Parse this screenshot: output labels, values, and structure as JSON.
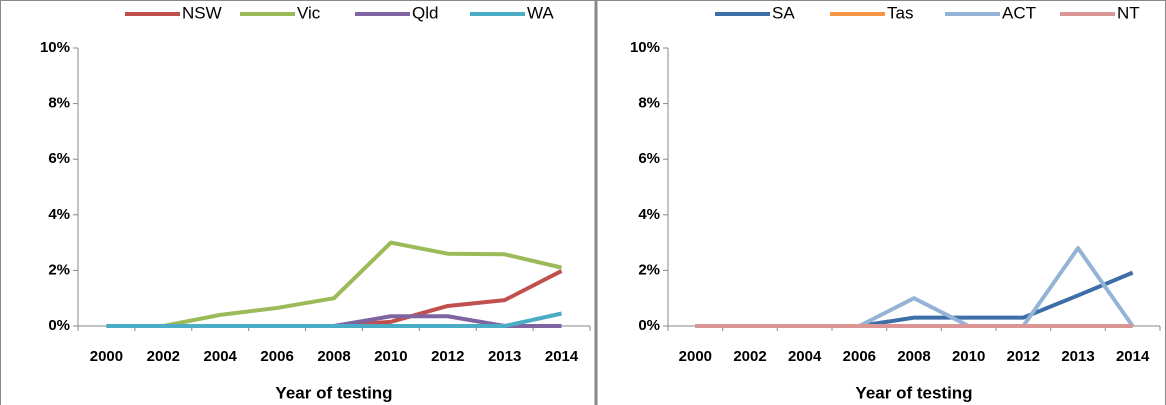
{
  "chart_data": [
    {
      "type": "line",
      "xlabel": "Year of testing",
      "categories": [
        "2000",
        "2002",
        "2004",
        "2006",
        "2008",
        "2010",
        "2012",
        "2013",
        "2014"
      ],
      "ylim": [
        0,
        10
      ],
      "yticks": [
        {
          "value": 0,
          "label": "0%"
        },
        {
          "value": 2,
          "label": "2%"
        },
        {
          "value": 4,
          "label": "4%"
        },
        {
          "value": 6,
          "label": "6%"
        },
        {
          "value": 8,
          "label": "8%"
        },
        {
          "value": 10,
          "label": "10%"
        }
      ],
      "legend": "top",
      "series": [
        {
          "name": "NSW",
          "color": "#c0504d",
          "values": [
            0,
            0,
            0,
            0,
            0,
            0.15,
            0.72,
            0.93,
            1.98
          ]
        },
        {
          "name": "Vic",
          "color": "#9bbb59",
          "values": [
            0,
            0,
            0.4,
            0.65,
            1.0,
            3.0,
            2.6,
            2.58,
            2.1
          ]
        },
        {
          "name": "Qld",
          "color": "#8064a2",
          "values": [
            0,
            0,
            0,
            0,
            0,
            0.35,
            0.35,
            0,
            0
          ]
        },
        {
          "name": "WA",
          "color": "#4bacc6",
          "values": [
            0,
            0,
            0,
            0,
            0,
            0,
            0,
            0,
            0.45
          ]
        }
      ]
    },
    {
      "type": "line",
      "xlabel": "Year of testing",
      "categories": [
        "2000",
        "2002",
        "2004",
        "2006",
        "2008",
        "2010",
        "2012",
        "2013",
        "2014"
      ],
      "ylim": [
        0,
        10
      ],
      "yticks": [
        {
          "value": 0,
          "label": "0%"
        },
        {
          "value": 2,
          "label": "2%"
        },
        {
          "value": 4,
          "label": "4%"
        },
        {
          "value": 6,
          "label": "6%"
        },
        {
          "value": 8,
          "label": "8%"
        },
        {
          "value": 10,
          "label": "10%"
        }
      ],
      "legend": "top",
      "series": [
        {
          "name": "SA",
          "color": "#3d6ea8",
          "values": [
            0,
            0,
            0,
            0,
            0.3,
            0.3,
            0.3,
            1.1,
            1.92
          ]
        },
        {
          "name": "Tas",
          "color": "#f79646",
          "values": [
            0,
            0,
            0,
            0,
            0,
            0,
            0,
            0,
            0
          ]
        },
        {
          "name": "ACT",
          "color": "#95b3d7",
          "values": [
            0,
            0,
            0,
            0,
            1.0,
            0,
            0,
            2.8,
            0
          ]
        },
        {
          "name": "NT",
          "color": "#d99694",
          "values": [
            0,
            0,
            0,
            0,
            0,
            0,
            0,
            0,
            0
          ]
        }
      ]
    }
  ]
}
